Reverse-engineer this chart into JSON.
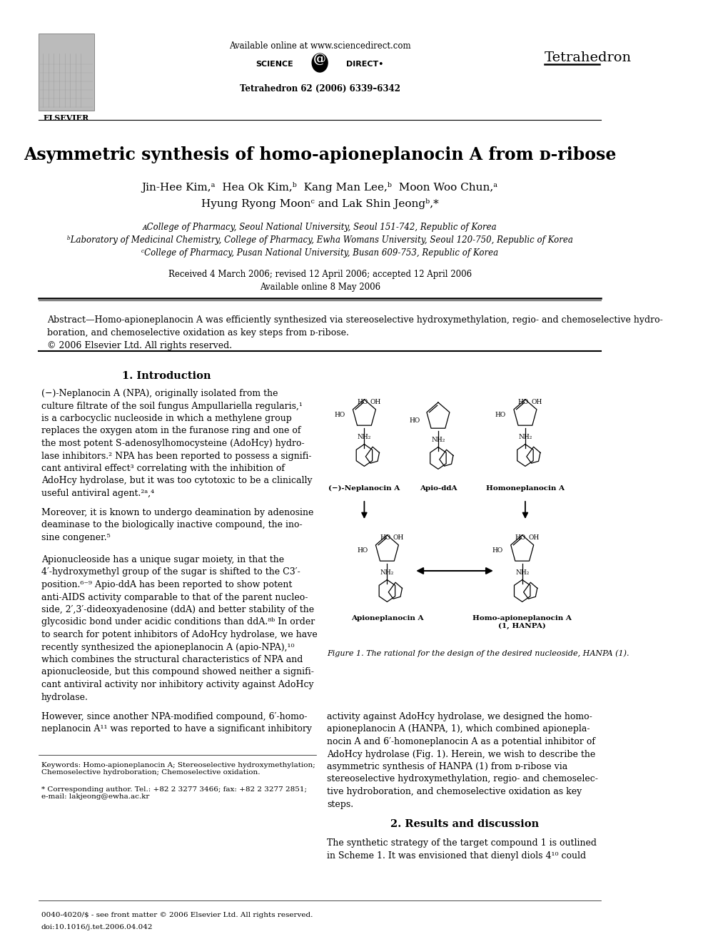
{
  "title": "Asymmetric synthesis of homo-apioneplanocin A from ᴅ-ribose",
  "journal_name": "Tetrahedron",
  "journal_info": "Tetrahedron 62 (2006) 6339–6342",
  "elsevier_text": "ELSEVIER",
  "sciencedirect_url": "Available online at www.sciencedirect.com",
  "bg_color": "#ffffff",
  "text_color": "#000000",
  "blue_color": "#1a0dab",
  "fig_caption": "Figure 1. The rational for the design of the desired nucleoside, HANPA (1).",
  "keywords": "Keywords: Homo-apioneplanocin A; Stereoselective hydroxymethylation;\nChemoselective hydroboration; Chemoselective oxidation.",
  "corresponding": "* Corresponding author. Tel.: +82 2 3277 3466; fax: +82 2 3277 2851;\ne-mail: lakjeong@ewha.ac.kr",
  "footer1": "0040-4020/$ - see front matter © 2006 Elsevier Ltd. All rights reserved.",
  "footer2": "doi:10.1016/j.tet.2006.04.042"
}
